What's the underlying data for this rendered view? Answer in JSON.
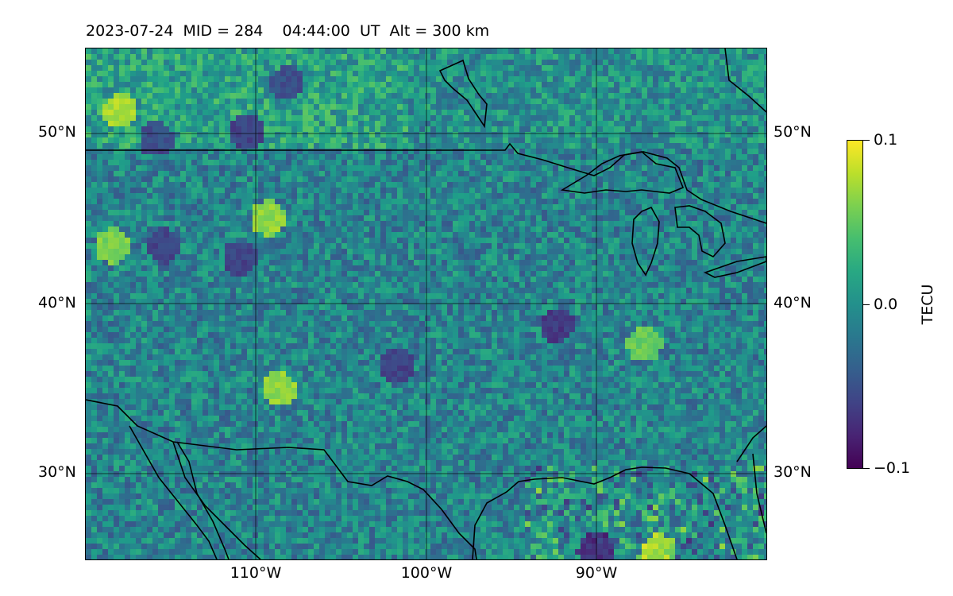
{
  "title": "2023-07-24  MID = 284    04:44:00  UT  Alt = 300 km",
  "map": {
    "type": "heatmap",
    "lon_range": [
      -120,
      -80
    ],
    "lat_range": [
      25,
      55
    ],
    "grid": "on",
    "coastlines": "on",
    "lat_ticks": [
      "50°N",
      "40°N",
      "30°N"
    ],
    "lon_ticks": [
      "110°W",
      "100°W",
      "90°W"
    ],
    "colormap": "viridis"
  },
  "colorbar": {
    "label": "TECU",
    "ticks": [
      "0.1",
      "0.0",
      "−0.1"
    ],
    "vmin": -0.1,
    "vmax": 0.1
  },
  "colors": {
    "low": "#440154",
    "mid": "#21908d",
    "high": "#fde725"
  }
}
